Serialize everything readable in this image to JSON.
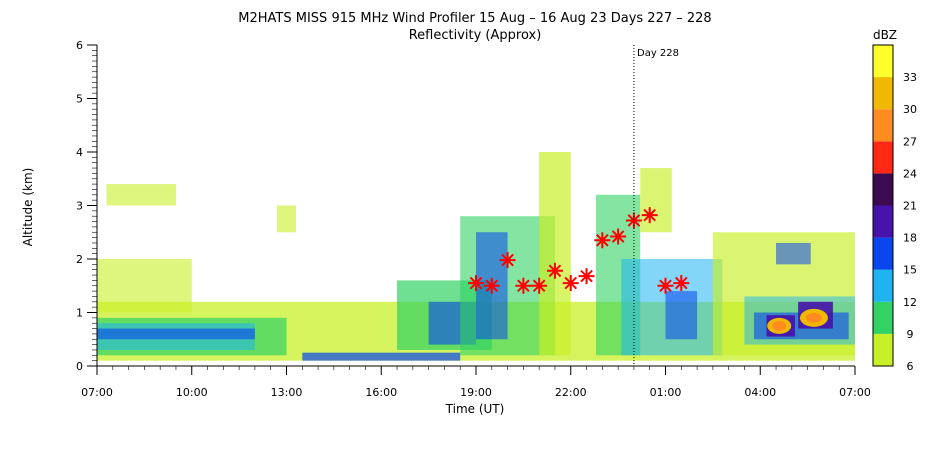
{
  "chart_data": {
    "type": "heatmap",
    "title": "M2HATS MISS 915 MHz Wind Profiler  15 Aug – 16 Aug 23 Days 227 – 228",
    "subtitle": "Reflectivity (Approx)",
    "xlabel": "Time (UT)",
    "ylabel": "Altitude (km)",
    "x_ticks": [
      "07:00",
      "10:00",
      "13:00",
      "16:00",
      "19:00",
      "22:00",
      "01:00",
      "04:00",
      "07:00"
    ],
    "x_range_hours": [
      0,
      24
    ],
    "ylim": [
      0,
      6
    ],
    "y_ticks": [
      "0",
      "1",
      "2",
      "3",
      "4",
      "5",
      "6"
    ],
    "day_marker": {
      "label": "Day 228",
      "x_hours": 17
    },
    "colorbar": {
      "unit": "dBZ",
      "levels": [
        "6",
        "9",
        "12",
        "15",
        "18",
        "21",
        "24",
        "27",
        "30",
        "33"
      ],
      "colors": [
        "#c8f028",
        "#32d264",
        "#1eb4f0",
        "#0a46f0",
        "#4612aa",
        "#3c0a50",
        "#ff2814",
        "#ff8c1e",
        "#f0b900",
        "#ffff2c"
      ]
    },
    "markers": {
      "color": "#ff0000",
      "points": [
        {
          "x": 12.0,
          "y": 1.55
        },
        {
          "x": 12.5,
          "y": 1.5
        },
        {
          "x": 13.0,
          "y": 1.98
        },
        {
          "x": 13.5,
          "y": 1.5
        },
        {
          "x": 14.0,
          "y": 1.5
        },
        {
          "x": 14.5,
          "y": 1.78
        },
        {
          "x": 15.0,
          "y": 1.55
        },
        {
          "x": 15.5,
          "y": 1.68
        },
        {
          "x": 16.0,
          "y": 2.35
        },
        {
          "x": 16.5,
          "y": 2.42
        },
        {
          "x": 17.0,
          "y": 2.72
        },
        {
          "x": 17.5,
          "y": 2.82
        },
        {
          "x": 18.0,
          "y": 1.5
        },
        {
          "x": 18.5,
          "y": 1.55
        }
      ]
    }
  }
}
